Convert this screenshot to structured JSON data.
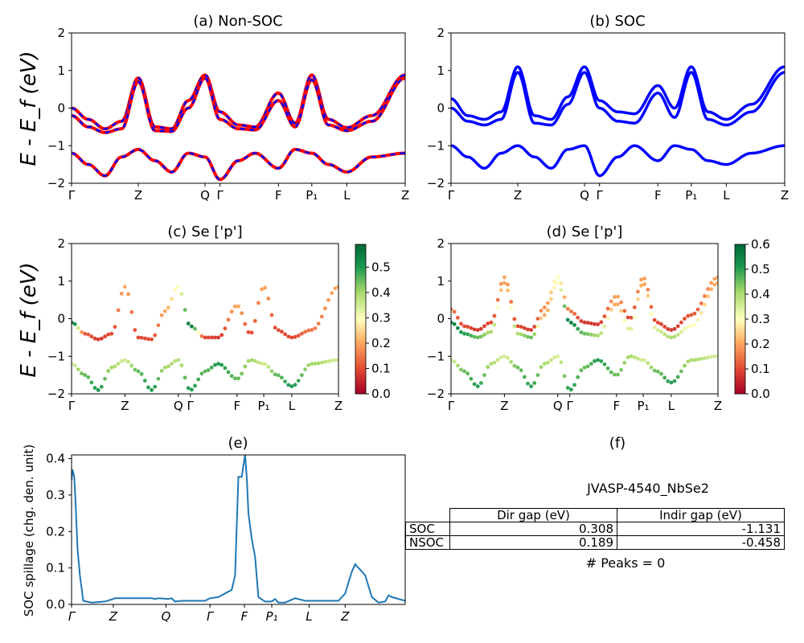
{
  "panels": {
    "a": {
      "title": "(a) Non-SOC",
      "ylabel": "E - E_f (eV)"
    },
    "b": {
      "title": "(b) SOC"
    },
    "c": {
      "title": "(c)  Se ['p']",
      "ylabel": "E - E_f (eV)"
    },
    "d": {
      "title": "(d) Se ['p']"
    },
    "e": {
      "title": "(e)",
      "ylabel": "SOC spillage (chg. den. unit)"
    },
    "f": {
      "title": "(f)",
      "material": "JVASP-4540_NbSe2",
      "peaks": "# Peaks = 0"
    }
  },
  "bands_axis": {
    "ylim": [
      -2,
      2
    ],
    "yticks": [
      "2",
      "1",
      "0",
      "−1",
      "−2"
    ],
    "kpath": [
      {
        "label": "Γ",
        "pos": 0.0
      },
      {
        "label": "Z",
        "pos": 0.2
      },
      {
        "label": "Q",
        "pos": 0.4
      },
      {
        "label": "Γ",
        "pos": 0.445
      },
      {
        "label": "F",
        "pos": 0.62
      },
      {
        "label": "P₁",
        "pos": 0.72
      },
      {
        "label": "L",
        "pos": 0.825
      },
      {
        "label": "Z",
        "pos": 1.0
      }
    ]
  },
  "colorbars": {
    "c": {
      "ticks": [
        "0.0",
        "0.1",
        "0.2",
        "0.3",
        "0.4",
        "0.5"
      ],
      "max": 0.59,
      "colormap": "RdYlGn"
    },
    "d": {
      "ticks": [
        "0.0",
        "0.1",
        "0.2",
        "0.3",
        "0.4",
        "0.5",
        "0.6"
      ],
      "max": 0.6,
      "colormap": "RdYlGn"
    }
  },
  "colors": {
    "nonsoc_up": "#ff0000",
    "nonsoc_dn": "#0000ff",
    "soc": "#0000ff",
    "spillage": "#1f77b4"
  },
  "spillage_axis": {
    "ylim": [
      0,
      0.41
    ],
    "yticks": [
      "0.0",
      "0.1",
      "0.2",
      "0.3",
      "0.4"
    ],
    "kpath": [
      {
        "label": "Γ",
        "pos": 0.0
      },
      {
        "label": "Z",
        "pos": 0.125
      },
      {
        "label": "Q",
        "pos": 0.283
      },
      {
        "label": "Γ",
        "pos": 0.415
      },
      {
        "label": "F",
        "pos": 0.518
      },
      {
        "label": "P₁",
        "pos": 0.6
      },
      {
        "label": "L",
        "pos": 0.712
      },
      {
        "label": "Z",
        "pos": 0.82
      }
    ]
  },
  "table": {
    "headers": [
      "Dir gap (eV)",
      "Indir gap (eV)"
    ],
    "rows": [
      {
        "label": "SOC",
        "dir": "0.308",
        "indir": "-1.131"
      },
      {
        "label": "NSOC",
        "dir": "0.189",
        "indir": "-0.458"
      }
    ]
  },
  "chart_data": [
    {
      "type": "line",
      "title": "(a) Non-SOC",
      "ylabel": "E - E_f (eV)",
      "ylim": [
        -2,
        2
      ],
      "x": [
        0.0,
        0.05,
        0.1,
        0.15,
        0.2,
        0.25,
        0.3,
        0.35,
        0.4,
        0.445,
        0.5,
        0.55,
        0.62,
        0.67,
        0.72,
        0.77,
        0.825,
        0.9,
        1.0
      ],
      "series": [
        {
          "name": "band-1",
          "values": [
            0.0,
            -0.3,
            -0.55,
            -0.35,
            0.8,
            -0.5,
            -0.55,
            0.2,
            0.88,
            -0.1,
            -0.45,
            -0.5,
            0.4,
            -0.4,
            0.88,
            -0.3,
            -0.52,
            -0.2,
            0.88
          ]
        },
        {
          "name": "band-2",
          "values": [
            -0.2,
            -0.5,
            -0.65,
            -0.55,
            0.7,
            -0.6,
            -0.62,
            0.0,
            0.8,
            -0.3,
            -0.55,
            -0.58,
            0.2,
            -0.5,
            0.75,
            -0.45,
            -0.6,
            -0.35,
            0.8
          ]
        },
        {
          "name": "band-3",
          "values": [
            -1.2,
            -1.5,
            -1.8,
            -1.3,
            -1.1,
            -1.4,
            -1.7,
            -1.2,
            -1.3,
            -1.9,
            -1.4,
            -1.2,
            -1.6,
            -1.1,
            -1.2,
            -1.5,
            -1.7,
            -1.3,
            -1.2
          ]
        }
      ]
    },
    {
      "type": "line",
      "title": "(b) SOC",
      "ylim": [
        -2,
        2
      ],
      "x": [
        0.0,
        0.05,
        0.1,
        0.15,
        0.2,
        0.25,
        0.3,
        0.35,
        0.4,
        0.445,
        0.5,
        0.55,
        0.62,
        0.67,
        0.72,
        0.77,
        0.825,
        0.9,
        1.0
      ],
      "series": [
        {
          "name": "band-1",
          "values": [
            0.25,
            -0.2,
            -0.3,
            -0.1,
            1.1,
            -0.2,
            -0.3,
            0.3,
            1.1,
            0.2,
            -0.1,
            -0.15,
            0.6,
            0.0,
            1.1,
            -0.1,
            -0.3,
            0.1,
            1.1
          ]
        },
        {
          "name": "band-2",
          "values": [
            0.0,
            -0.35,
            -0.45,
            -0.3,
            0.95,
            -0.4,
            -0.45,
            0.1,
            0.95,
            0.0,
            -0.35,
            -0.4,
            0.4,
            -0.25,
            0.95,
            -0.3,
            -0.45,
            -0.1,
            0.95
          ]
        },
        {
          "name": "band-3",
          "values": [
            -1.0,
            -1.3,
            -1.6,
            -1.2,
            -1.0,
            -1.3,
            -1.6,
            -1.1,
            -1.0,
            -1.8,
            -1.3,
            -1.0,
            -1.4,
            -1.0,
            -1.1,
            -1.4,
            -1.5,
            -1.2,
            -1.0
          ]
        }
      ]
    },
    {
      "type": "scatter",
      "title": "(c)  Se ['p']",
      "ylim": [
        -2,
        2
      ],
      "colorbar": {
        "min": 0.0,
        "max": 0.59
      },
      "x": [
        0.0,
        0.05,
        0.1,
        0.15,
        0.2,
        0.25,
        0.3,
        0.35,
        0.4,
        0.445,
        0.5,
        0.55,
        0.62,
        0.67,
        0.72,
        0.77,
        0.825,
        0.9,
        1.0
      ],
      "series": [
        {
          "name": "band-1",
          "values": [
            -0.1,
            -0.4,
            -0.55,
            -0.4,
            0.85,
            -0.5,
            -0.55,
            0.2,
            0.85,
            -0.2,
            -0.5,
            -0.5,
            0.35,
            -0.4,
            0.85,
            -0.3,
            -0.5,
            -0.3,
            0.85
          ],
          "weights": [
            0.58,
            0.12,
            0.08,
            0.1,
            0.2,
            0.1,
            0.1,
            0.2,
            0.3,
            0.55,
            0.1,
            0.08,
            0.2,
            0.1,
            0.2,
            0.1,
            0.1,
            0.15,
            0.2
          ]
        },
        {
          "name": "band-2",
          "values": [
            -1.2,
            -1.5,
            -1.9,
            -1.3,
            -1.1,
            -1.4,
            -1.9,
            -1.3,
            -1.1,
            -1.9,
            -1.4,
            -1.2,
            -1.6,
            -1.1,
            -1.2,
            -1.5,
            -1.8,
            -1.2,
            -1.1
          ],
          "weights": [
            0.35,
            0.45,
            0.5,
            0.4,
            0.35,
            0.45,
            0.5,
            0.4,
            0.38,
            0.5,
            0.45,
            0.5,
            0.45,
            0.4,
            0.35,
            0.45,
            0.5,
            0.4,
            0.35
          ]
        }
      ]
    },
    {
      "type": "scatter",
      "title": "(d) Se ['p']",
      "ylim": [
        -2,
        2
      ],
      "colorbar": {
        "min": 0.0,
        "max": 0.6
      },
      "x": [
        0.0,
        0.05,
        0.1,
        0.15,
        0.2,
        0.25,
        0.3,
        0.35,
        0.4,
        0.445,
        0.5,
        0.55,
        0.62,
        0.67,
        0.72,
        0.77,
        0.825,
        0.9,
        1.0
      ],
      "series": [
        {
          "name": "band-1",
          "values": [
            0.25,
            -0.2,
            -0.3,
            -0.1,
            1.1,
            -0.2,
            -0.3,
            0.3,
            1.1,
            0.2,
            -0.1,
            -0.15,
            0.6,
            0.0,
            1.1,
            -0.1,
            -0.3,
            0.1,
            1.1
          ],
          "weights": [
            0.15,
            0.1,
            0.08,
            0.1,
            0.2,
            0.1,
            0.08,
            0.18,
            0.3,
            0.15,
            0.08,
            0.08,
            0.2,
            0.1,
            0.2,
            0.1,
            0.08,
            0.12,
            0.2
          ]
        },
        {
          "name": "band-2",
          "values": [
            -0.1,
            -0.4,
            -0.5,
            -0.35,
            0.95,
            -0.4,
            -0.5,
            0.1,
            0.95,
            -0.1,
            -0.4,
            -0.45,
            0.4,
            -0.3,
            0.95,
            -0.3,
            -0.5,
            -0.2,
            0.95
          ],
          "weights": [
            0.55,
            0.5,
            0.45,
            0.4,
            0.2,
            0.4,
            0.45,
            0.2,
            0.3,
            0.55,
            0.45,
            0.4,
            0.2,
            0.35,
            0.2,
            0.35,
            0.4,
            0.3,
            0.2
          ]
        },
        {
          "name": "band-3",
          "values": [
            -1.1,
            -1.4,
            -1.8,
            -1.2,
            -1.0,
            -1.3,
            -1.8,
            -1.2,
            -1.0,
            -1.9,
            -1.3,
            -1.1,
            -1.5,
            -1.0,
            -1.1,
            -1.4,
            -1.7,
            -1.1,
            -1.0
          ],
          "weights": [
            0.35,
            0.45,
            0.5,
            0.4,
            0.35,
            0.45,
            0.5,
            0.4,
            0.35,
            0.5,
            0.45,
            0.5,
            0.45,
            0.4,
            0.35,
            0.45,
            0.5,
            0.4,
            0.35
          ]
        }
      ]
    },
    {
      "type": "line",
      "title": "(e)",
      "ylabel": "SOC spillage (chg. den. unit)",
      "ylim": [
        0,
        0.41
      ],
      "series": [
        {
          "name": "spillage",
          "x": [
            0.0,
            0.003,
            0.008,
            0.012,
            0.018,
            0.025,
            0.035,
            0.06,
            0.1,
            0.125,
            0.13,
            0.2,
            0.24,
            0.25,
            0.26,
            0.29,
            0.3,
            0.31,
            0.33,
            0.37,
            0.4,
            0.415,
            0.44,
            0.46,
            0.48,
            0.49,
            0.5,
            0.505,
            0.51,
            0.515,
            0.52,
            0.525,
            0.53,
            0.54,
            0.55,
            0.56,
            0.58,
            0.6,
            0.61,
            0.62,
            0.64,
            0.67,
            0.7,
            0.75,
            0.8,
            0.82,
            0.83,
            0.84,
            0.85,
            0.86,
            0.88,
            0.9,
            0.92,
            0.94,
            0.95,
            0.96,
            1.0
          ],
          "values": [
            0.34,
            0.37,
            0.35,
            0.28,
            0.15,
            0.08,
            0.01,
            0.005,
            0.008,
            0.015,
            0.017,
            0.017,
            0.017,
            0.015,
            0.017,
            0.015,
            0.017,
            0.008,
            0.01,
            0.01,
            0.01,
            0.017,
            0.02,
            0.03,
            0.04,
            0.08,
            0.35,
            0.35,
            0.35,
            0.38,
            0.41,
            0.35,
            0.25,
            0.18,
            0.13,
            0.02,
            0.008,
            0.008,
            0.015,
            0.005,
            0.005,
            0.017,
            0.01,
            0.01,
            0.01,
            0.03,
            0.06,
            0.09,
            0.11,
            0.1,
            0.08,
            0.02,
            0.005,
            0.008,
            0.025,
            0.02,
            0.01
          ]
        }
      ]
    },
    {
      "type": "table",
      "title": "(f)",
      "columns": [
        "",
        "Dir gap (eV)",
        "Indir gap (eV)"
      ],
      "rows": [
        [
          "SOC",
          "0.308",
          "-1.131"
        ],
        [
          "NSOC",
          "0.189",
          "-0.458"
        ]
      ]
    }
  ]
}
